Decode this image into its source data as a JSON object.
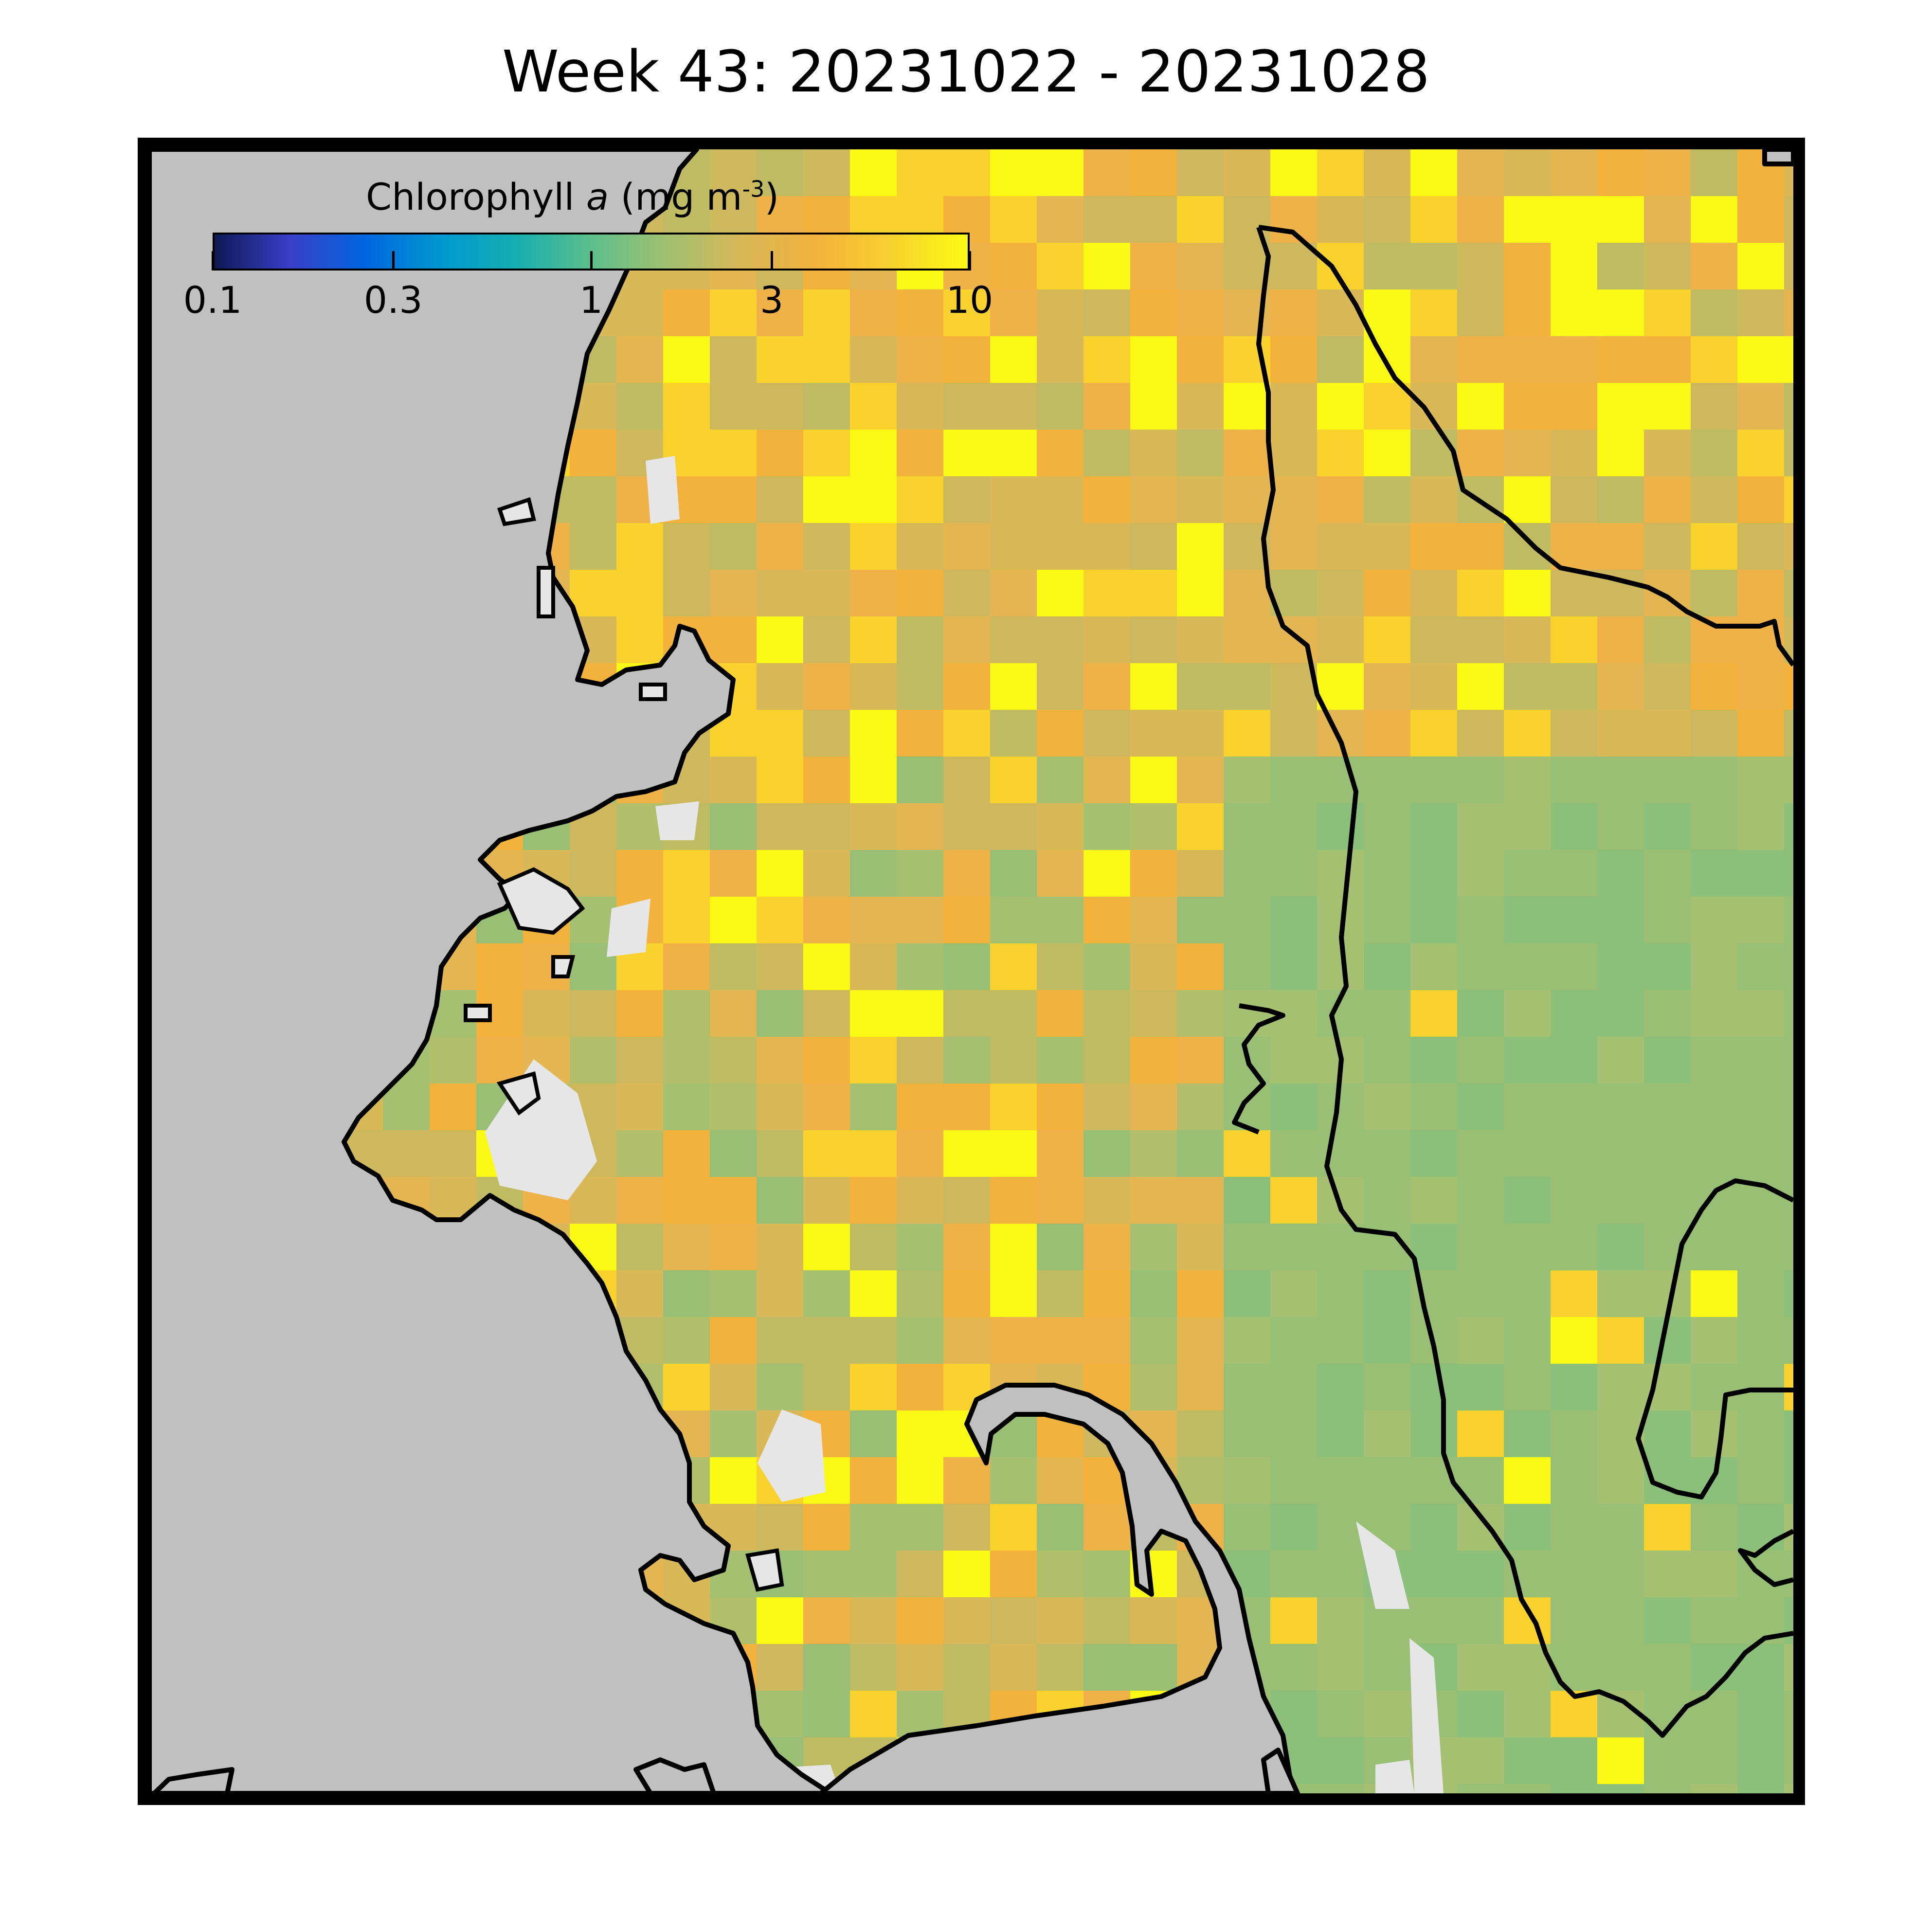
{
  "title": "Week 43: 20231022 - 20231028",
  "map": {
    "land_color": "#c0c0c0",
    "nodata_color": "#e6e6e6",
    "coastline_color": "#000000",
    "seed": 43,
    "dominant_chlorophyll_mg_m3": "~2-8"
  },
  "colorbar": {
    "label_prefix": "Chlorophyll ",
    "label_var": "a",
    "label_units": " (mg m",
    "label_exp": "-3",
    "label_close": ")",
    "scale": "log",
    "range": [
      0.1,
      10
    ],
    "ticks": [
      {
        "value": 0.1,
        "label": "0.1"
      },
      {
        "value": 0.3,
        "label": "0.3"
      },
      {
        "value": 1,
        "label": "1"
      },
      {
        "value": 3,
        "label": "3"
      },
      {
        "value": 10,
        "label": "10"
      }
    ],
    "colors": [
      "#0c1a55",
      "#3a3fc8",
      "#0066e0",
      "#0098d0",
      "#16aeb0",
      "#5cbf8c",
      "#a0c070",
      "#d9b858",
      "#f3b23c",
      "#f9d22e",
      "#fafa14"
    ]
  }
}
